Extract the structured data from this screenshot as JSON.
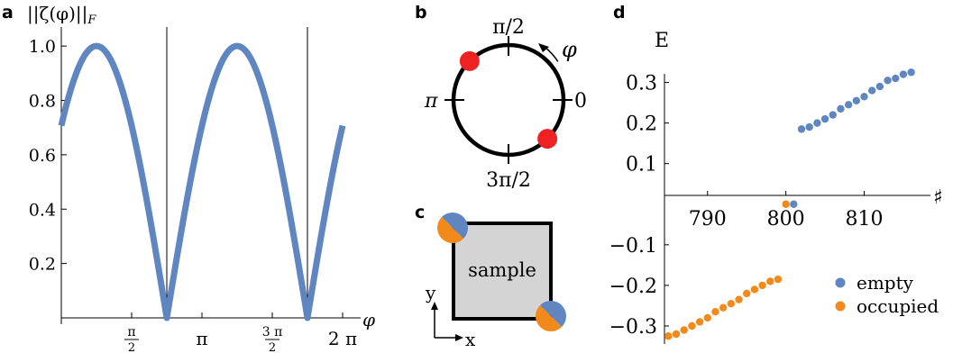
{
  "panel_labels": {
    "a": "a",
    "b": "b",
    "c": "c",
    "d": "d"
  },
  "chart_data": [
    {
      "id": "a",
      "type": "line",
      "title": "||ζ(φ)||",
      "title_sub": "F",
      "xlabel": "φ",
      "ylabel": "",
      "xlim": [
        0,
        6.2832
      ],
      "ylim": [
        0,
        1.07
      ],
      "x_ticks": [
        {
          "value": 1.5708,
          "label_top": "π",
          "label_bottom": "2"
        },
        {
          "value": 3.1416,
          "label": "π"
        },
        {
          "value": 4.7124,
          "label_top": "3 π",
          "label_bottom": "2"
        },
        {
          "value": 6.2832,
          "label": "2 π"
        }
      ],
      "y_ticks": [
        {
          "value": 0.2,
          "label": "0.2"
        },
        {
          "value": 0.4,
          "label": "0.4"
        },
        {
          "value": 0.6,
          "label": "0.6"
        },
        {
          "value": 0.8,
          "label": "0.8"
        },
        {
          "value": 1.0,
          "label": "1.0"
        }
      ],
      "curve": {
        "expression": "|sin(φ + π/4)|",
        "x_start": 0,
        "x_end": 6.2832
      },
      "vertical_lines": [
        2.3562,
        5.4978
      ],
      "series_color": "#5f86c0"
    },
    {
      "id": "d",
      "type": "scatter",
      "title": "",
      "xlabel": "♯",
      "ylabel": "E",
      "xlim": [
        784.5,
        818
      ],
      "ylim": [
        -0.34,
        0.37
      ],
      "x_ticks": [
        {
          "value": 790,
          "label": "790"
        },
        {
          "value": 800,
          "label": "800"
        },
        {
          "value": 810,
          "label": "810"
        }
      ],
      "y_ticks": [
        {
          "value": 0.3,
          "label": "0.3"
        },
        {
          "value": 0.2,
          "label": "0.2"
        },
        {
          "value": 0.1,
          "label": "0.1"
        },
        {
          "value": -0.1,
          "label": "−0.1"
        },
        {
          "value": -0.2,
          "label": "−0.2"
        },
        {
          "value": -0.3,
          "label": "−0.3"
        }
      ],
      "legend_position": "bottom-right",
      "series": [
        {
          "name": "empty",
          "color": "#5f86c0",
          "points": [
            [
              801,
              0.0
            ],
            [
              802,
              0.185
            ],
            [
              803,
              0.19
            ],
            [
              804,
              0.2
            ],
            [
              805,
              0.21
            ],
            [
              806,
              0.22
            ],
            [
              807,
              0.235
            ],
            [
              808,
              0.245
            ],
            [
              809,
              0.255
            ],
            [
              810,
              0.265
            ],
            [
              811,
              0.28
            ],
            [
              812,
              0.29
            ],
            [
              813,
              0.305
            ],
            [
              814,
              0.31
            ],
            [
              815,
              0.32
            ],
            [
              816,
              0.325
            ]
          ]
        },
        {
          "name": "occupied",
          "color": "#f28a1b",
          "points": [
            [
              785,
              -0.325
            ],
            [
              786,
              -0.32
            ],
            [
              787,
              -0.31
            ],
            [
              788,
              -0.3
            ],
            [
              789,
              -0.29
            ],
            [
              790,
              -0.28
            ],
            [
              791,
              -0.265
            ],
            [
              792,
              -0.255
            ],
            [
              793,
              -0.245
            ],
            [
              794,
              -0.235
            ],
            [
              795,
              -0.22
            ],
            [
              796,
              -0.21
            ],
            [
              797,
              -0.2
            ],
            [
              798,
              -0.19
            ],
            [
              799,
              -0.185
            ],
            [
              800,
              0.0
            ]
          ]
        }
      ]
    }
  ],
  "panel_b": {
    "labels": {
      "top": "π/2",
      "bottom": "3π/2",
      "left": "π",
      "right": "0",
      "phi": "φ"
    },
    "dots_deg": [
      135,
      315
    ],
    "dot_color": "#ee2222",
    "ring_color": "#000000"
  },
  "panel_c": {
    "sample_label": "sample",
    "sample_fill": "#d4d4d4",
    "axis_labels": {
      "x": "x",
      "y": "y"
    },
    "corner_colors": [
      "#5f86c0",
      "#f28a1b"
    ]
  }
}
